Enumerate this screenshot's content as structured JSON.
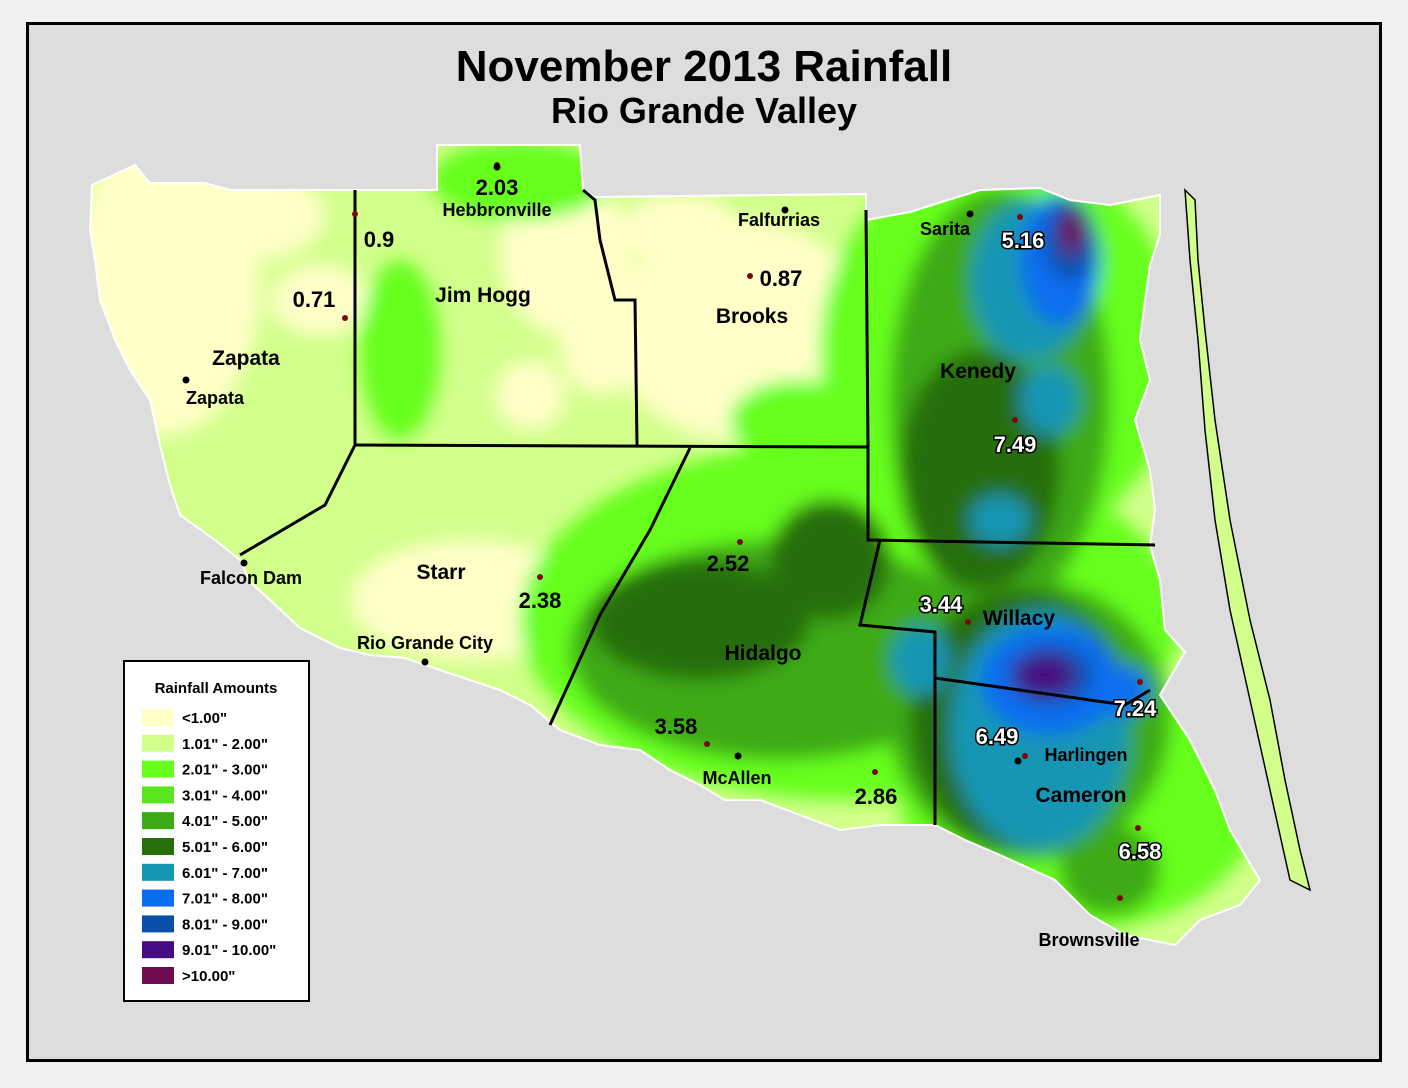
{
  "title": "November 2013 Rainfall",
  "subtitle": "Rio Grande Valley",
  "counties": [
    "Zapata",
    "Jim Hogg",
    "Brooks",
    "Kenedy",
    "Starr",
    "Hidalgo",
    "Willacy",
    "Cameron"
  ],
  "cities": [
    "Zapata",
    "Hebbronville",
    "Falfurrias",
    "Sarita",
    "Falcon Dam",
    "Rio Grande City",
    "McAllen",
    "Harlingen",
    "Brownsville"
  ],
  "rainfall_values": [
    "0.71",
    "0.9",
    "2.03",
    "0.87",
    "5.16",
    "7.49",
    "2.38",
    "2.52",
    "3.58",
    "2.86",
    "3.44",
    "7.24",
    "6.49",
    "6.58"
  ],
  "legend": {
    "title": "Rainfall Amounts",
    "items": [
      {
        "label": "<1.00\"",
        "color": "#ffffc8"
      },
      {
        "label": "1.01\" - 2.00\"",
        "color": "#d2ff8c"
      },
      {
        "label": "2.01\" - 3.00\"",
        "color": "#66ff1e"
      },
      {
        "label": "3.01\" - 4.00\"",
        "color": "#5ae61e"
      },
      {
        "label": "4.01\" - 5.00\"",
        "color": "#3caa14"
      },
      {
        "label": "5.01\" - 6.00\"",
        "color": "#286e0a"
      },
      {
        "label": "6.01\" - 7.00\"",
        "color": "#1496b4"
      },
      {
        "label": "7.01\" - 8.00\"",
        "color": "#0a6ef0"
      },
      {
        "label": "8.01\" - 9.00\"",
        "color": "#0a50aa"
      },
      {
        "label": "9.01\" - 10.00\"",
        "color": "#460a82"
      },
      {
        "label": ">10.00\"",
        "color": "#6e0a50"
      }
    ]
  }
}
